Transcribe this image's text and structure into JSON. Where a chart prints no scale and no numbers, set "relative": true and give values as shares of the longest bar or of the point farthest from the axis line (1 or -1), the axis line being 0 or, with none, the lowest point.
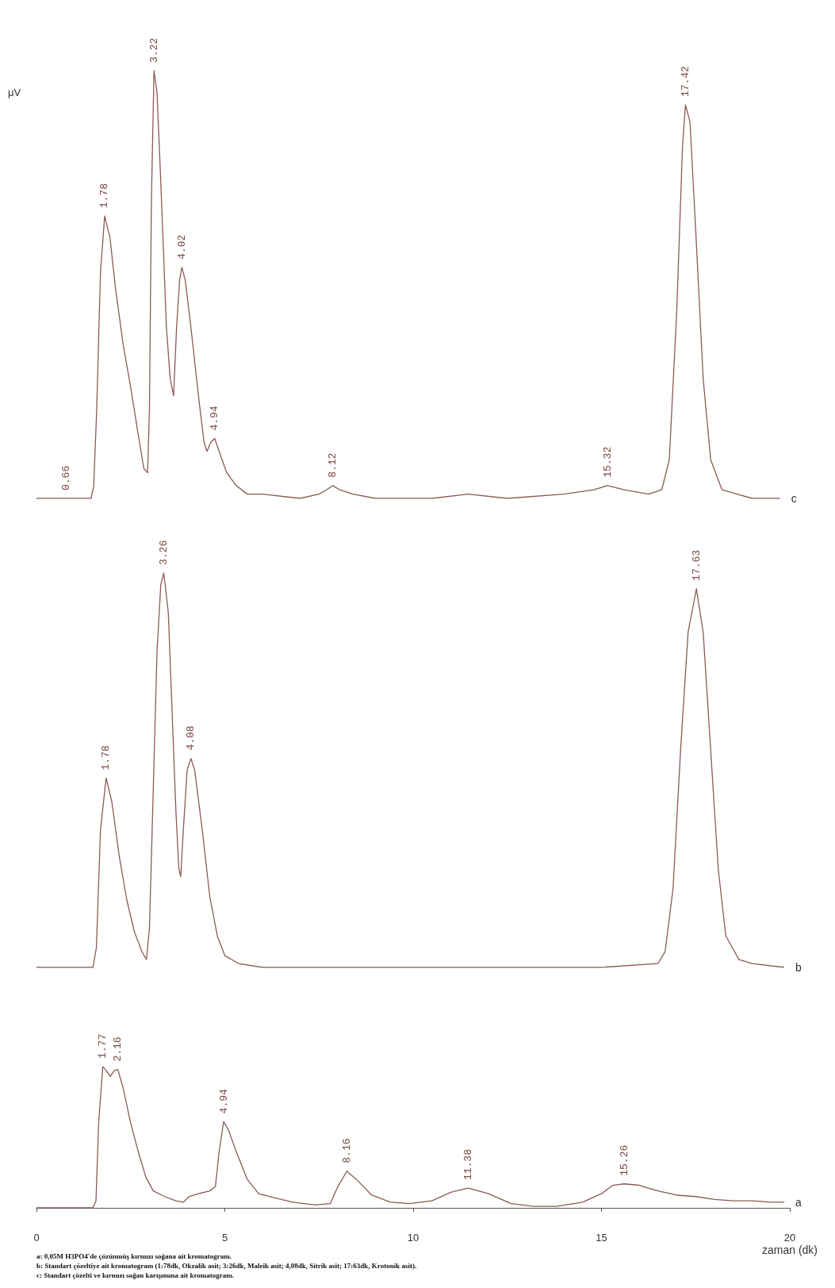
{
  "chart_data": [
    {
      "type": "line",
      "relative": true,
      "ylabel": "μV",
      "xlim": [
        0,
        20
      ],
      "tick_labels": false,
      "series": [
        {
          "name": "c",
          "color": "#8b5a55",
          "x": [
            0,
            1.45,
            1.52,
            1.6,
            1.7,
            1.81,
            1.95,
            2.1,
            2.3,
            2.5,
            2.7,
            2.85,
            2.95,
            3.0,
            3.05,
            3.12,
            3.2,
            3.3,
            3.45,
            3.55,
            3.64,
            3.72,
            3.8,
            3.86,
            3.95,
            4.1,
            4.3,
            4.45,
            4.53,
            4.62,
            4.73,
            4.85,
            5.05,
            5.3,
            5.6,
            6.0,
            7.0,
            7.5,
            7.7,
            7.87,
            8.05,
            8.4,
            9.0,
            10.5,
            11.46,
            12.5,
            14.0,
            14.8,
            15.16,
            15.6,
            16.25,
            16.6,
            16.8,
            17.0,
            17.15,
            17.23,
            17.35,
            17.5,
            17.7,
            17.9,
            18.2,
            18.6,
            19.0,
            19.74
          ],
          "values": [
            0,
            0,
            0.03,
            0.21,
            0.53,
            0.66,
            0.61,
            0.49,
            0.36,
            0.26,
            0.15,
            0.07,
            0.06,
            0.21,
            0.69,
            1,
            0.95,
            0.74,
            0.4,
            0.28,
            0.24,
            0.4,
            0.51,
            0.54,
            0.51,
            0.4,
            0.24,
            0.13,
            0.11,
            0.13,
            0.14,
            0.11,
            0.06,
            0.03,
            0.01,
            0.01,
            0,
            0.01,
            0.02,
            0.03,
            0.02,
            0.01,
            0,
            0,
            0.01,
            0,
            0.01,
            0.02,
            0.03,
            0.02,
            0.01,
            0.02,
            0.09,
            0.44,
            0.82,
            0.92,
            0.88,
            0.63,
            0.28,
            0.09,
            0.02,
            0.01,
            0,
            0
          ]
        }
      ],
      "annotations": [
        {
          "text": "0.66",
          "x": 0.78,
          "y": 0
        },
        {
          "text": "1.78",
          "x": 1.81,
          "y": 0.66
        },
        {
          "text": "3.22",
          "x": 3.12,
          "y": 1
        },
        {
          "text": "4.02",
          "x": 3.86,
          "y": 0.54
        },
        {
          "text": "4.94",
          "x": 4.73,
          "y": 0.14
        },
        {
          "text": "8.12",
          "x": 7.87,
          "y": 0.03
        },
        {
          "text": "15.32",
          "x": 15.16,
          "y": 0.03
        },
        {
          "text": "17.42",
          "x": 17.23,
          "y": 0.92
        }
      ]
    },
    {
      "type": "line",
      "relative": true,
      "xlim": [
        0,
        20
      ],
      "tick_labels": false,
      "series": [
        {
          "name": "b",
          "color": "#8b5a55",
          "x": [
            0,
            1.5,
            1.59,
            1.7,
            1.85,
            2.0,
            2.2,
            2.4,
            2.6,
            2.8,
            2.92,
            3.0,
            3.1,
            3.2,
            3.3,
            3.38,
            3.5,
            3.6,
            3.7,
            3.78,
            3.83,
            3.9,
            4.0,
            4.1,
            4.2,
            4.4,
            4.6,
            4.8,
            5.0,
            5.36,
            6,
            10,
            15,
            16.5,
            16.69,
            16.9,
            17.1,
            17.3,
            17.52,
            17.7,
            17.9,
            18.1,
            18.3,
            18.65,
            19.0,
            19.85
          ],
          "values": [
            0,
            0,
            0.05,
            0.35,
            0.48,
            0.42,
            0.28,
            0.17,
            0.09,
            0.04,
            0.02,
            0.1,
            0.45,
            0.8,
            0.97,
            1,
            0.9,
            0.65,
            0.4,
            0.25,
            0.23,
            0.35,
            0.5,
            0.53,
            0.5,
            0.35,
            0.18,
            0.08,
            0.03,
            0.01,
            0,
            0,
            0,
            0.01,
            0.04,
            0.2,
            0.55,
            0.85,
            0.96,
            0.85,
            0.55,
            0.25,
            0.08,
            0.02,
            0.01,
            0
          ]
        }
      ],
      "annotations": [
        {
          "text": "1.78",
          "x": 1.85,
          "y": 0.48
        },
        {
          "text": "3.26",
          "x": 3.38,
          "y": 1
        },
        {
          "text": "4.08",
          "x": 4.1,
          "y": 0.53
        },
        {
          "text": "17.63",
          "x": 17.52,
          "y": 0.96
        }
      ]
    },
    {
      "type": "line",
      "relative": true,
      "xlim": [
        0,
        20
      ],
      "xticks": [
        0,
        5,
        10,
        15,
        20
      ],
      "xlabel": "zaman (dk)",
      "series": [
        {
          "name": "a",
          "color": "#8b5a55",
          "x": [
            0,
            1.5,
            1.58,
            1.65,
            1.76,
            1.86,
            1.96,
            2.06,
            2.16,
            2.3,
            2.5,
            2.7,
            2.9,
            3.1,
            3.4,
            3.7,
            3.9,
            4.05,
            4.3,
            4.6,
            4.75,
            4.85,
            4.97,
            5.1,
            5.3,
            5.6,
            5.9,
            6.2,
            6.8,
            7.4,
            7.8,
            8.0,
            8.24,
            8.5,
            8.9,
            9.4,
            9.9,
            10.5,
            11.0,
            11.46,
            12.0,
            12.6,
            13.2,
            13.8,
            14.5,
            15.0,
            15.3,
            15.6,
            16.0,
            16.5,
            17.0,
            17.5,
            18.0,
            18.5,
            19.0,
            19.5,
            19.85
          ],
          "values": [
            0,
            0,
            0.05,
            0.6,
            1,
            0.97,
            0.93,
            0.97,
            0.98,
            0.85,
            0.6,
            0.4,
            0.22,
            0.12,
            0.08,
            0.05,
            0.04,
            0.08,
            0.1,
            0.12,
            0.15,
            0.4,
            0.61,
            0.55,
            0.4,
            0.2,
            0.1,
            0.08,
            0.04,
            0.02,
            0.03,
            0.15,
            0.26,
            0.2,
            0.09,
            0.04,
            0.03,
            0.05,
            0.11,
            0.14,
            0.1,
            0.03,
            0.01,
            0.01,
            0.04,
            0.1,
            0.16,
            0.17,
            0.16,
            0.12,
            0.09,
            0.08,
            0.06,
            0.05,
            0.05,
            0.04,
            0.04
          ]
        }
      ],
      "annotations": [
        {
          "text": "1.77",
          "x": 1.76,
          "y": 1
        },
        {
          "text": "2.16",
          "x": 2.16,
          "y": 0.98
        },
        {
          "text": "4.94",
          "x": 4.97,
          "y": 0.61
        },
        {
          "text": "8.16",
          "x": 8.24,
          "y": 0.26
        },
        {
          "text": "11.38",
          "x": 11.46,
          "y": 0.14
        },
        {
          "text": "15.26",
          "x": 15.6,
          "y": 0.17
        },
        "a: 0,05M H3PO4'de çözünmüş kırmızı soğana ait kromatogram.",
        "b: Standart çözeltiye ait kromatogram (1:78dk, Okzalik asit; 3:26dk, Maleik asit; 4,08dk, Sitrik asit; 17:63dk, Krotonik asit).",
        "c: Standart çözelti ve kırmızı soğan karışımına ait kromatogram."
      ]
    }
  ]
}
